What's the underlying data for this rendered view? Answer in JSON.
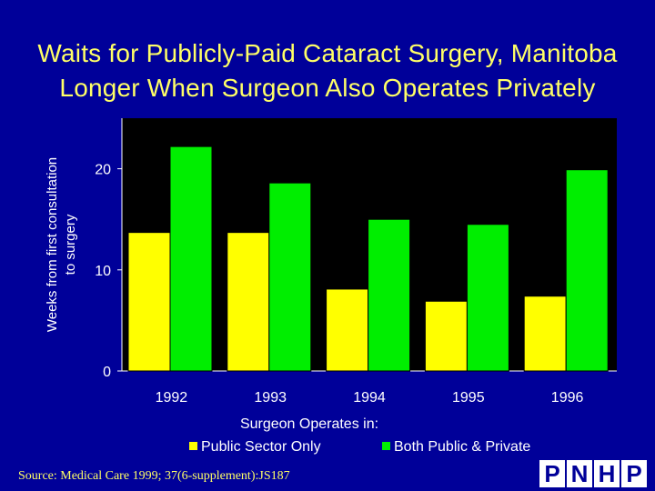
{
  "title_lines": [
    "Waits for Publicly-Paid Cataract Surgery, Manitoba",
    "Longer When Surgeon Also Operates Privately"
  ],
  "source": "Source: Medical Care 1999; 37(6-supplement):JS187",
  "logo_letters": [
    "P",
    "N",
    "H",
    "P"
  ],
  "colors": {
    "background": "#000099",
    "title": "#ffff66",
    "plot_area": "#000000",
    "series_public": "#ffff00",
    "series_both": "#00ee00"
  },
  "chart_data": {
    "type": "bar",
    "categories": [
      "1992",
      "1993",
      "1994",
      "1995",
      "1996"
    ],
    "series": [
      {
        "name": "Public Sector Only",
        "values": [
          13.7,
          13.7,
          8.1,
          6.9,
          7.4
        ]
      },
      {
        "name": "Both Public & Private",
        "values": [
          22.2,
          18.6,
          15.0,
          14.5,
          19.9
        ]
      }
    ],
    "xlabel": "Surgeon Operates in:",
    "ylabel_lines": [
      "Weeks from first consultation",
      "to surgery"
    ],
    "ylim": [
      0,
      25
    ],
    "yticks": [
      0,
      10,
      20
    ],
    "grid": false,
    "legend_position": "bottom"
  }
}
